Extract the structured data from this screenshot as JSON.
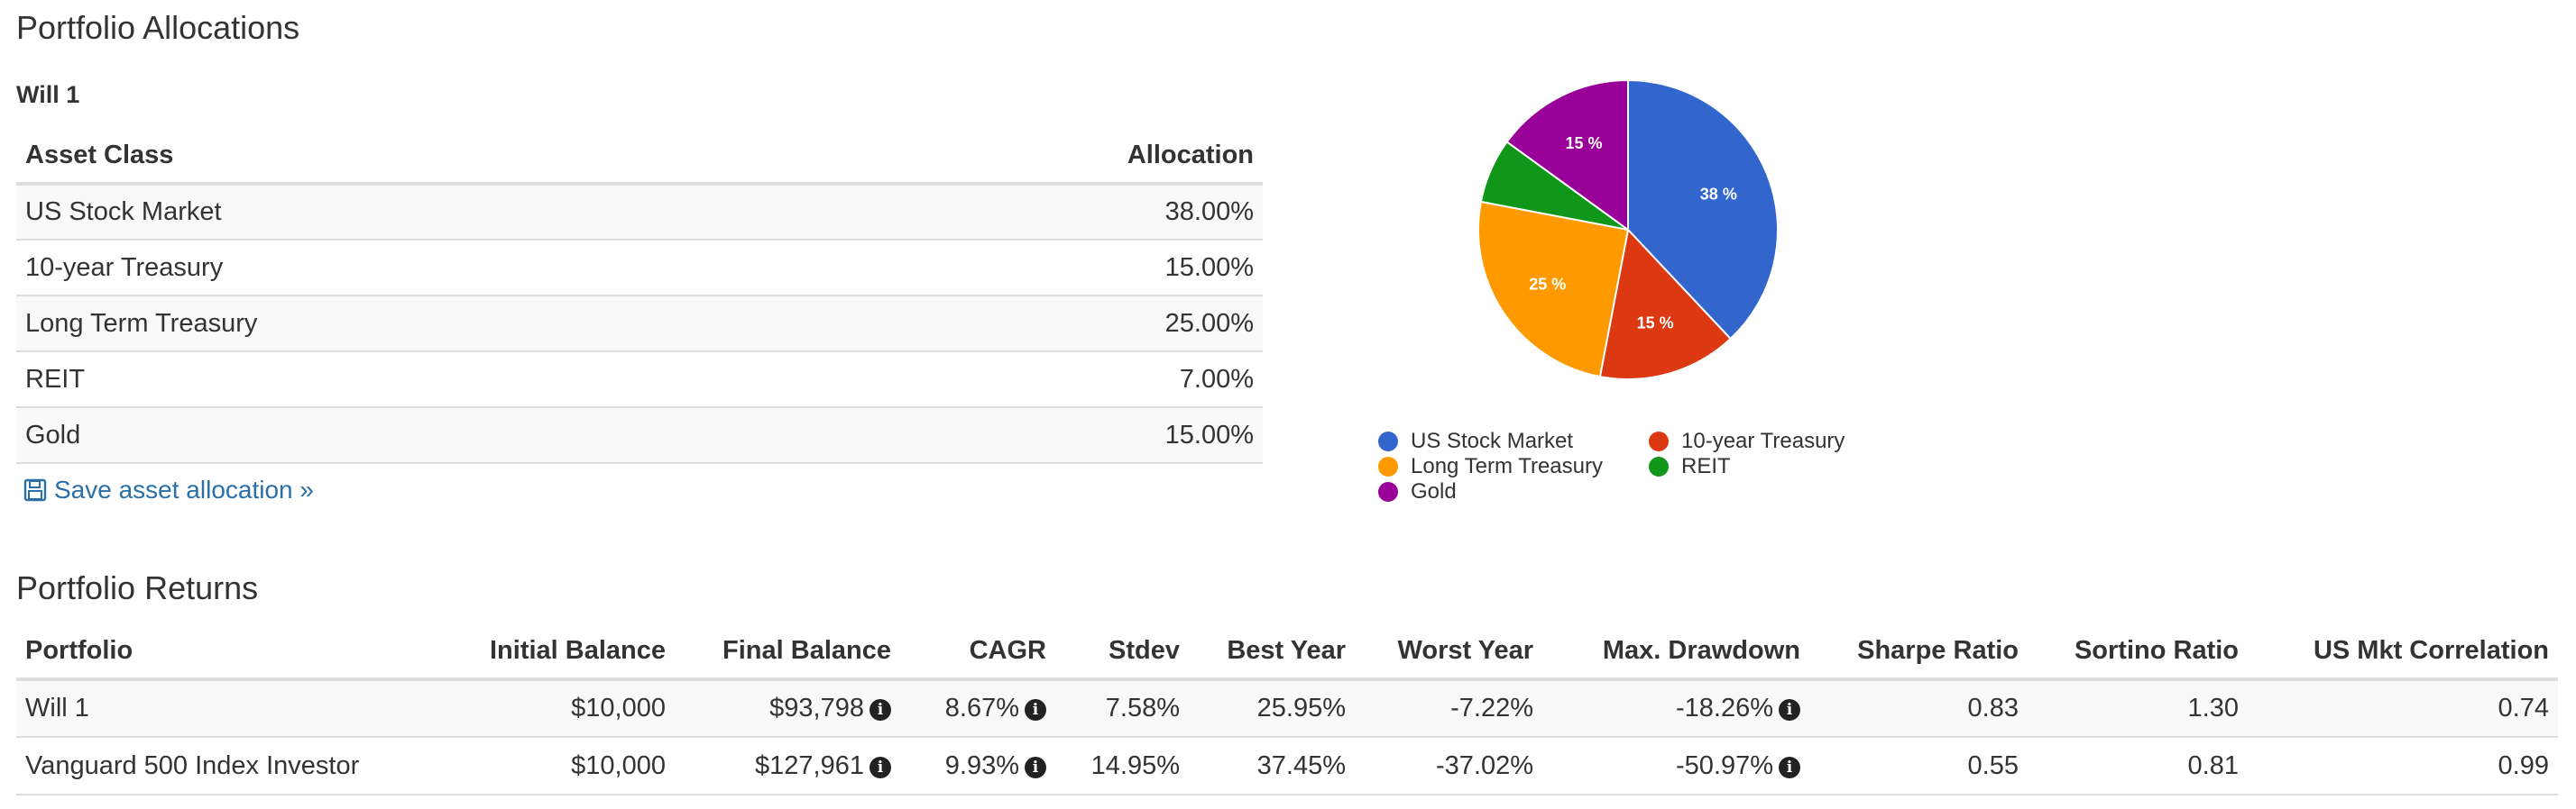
{
  "allocations": {
    "title": "Portfolio Allocations",
    "portfolio_name": "Will 1",
    "columns": [
      "Asset Class",
      "Allocation"
    ],
    "rows": [
      {
        "asset": "US Stock Market",
        "allocation": "38.00%"
      },
      {
        "asset": "10-year Treasury",
        "allocation": "15.00%"
      },
      {
        "asset": "Long Term Treasury",
        "allocation": "25.00%"
      },
      {
        "asset": "REIT",
        "allocation": "7.00%"
      },
      {
        "asset": "Gold",
        "allocation": "15.00%"
      }
    ],
    "save_link": "Save asset allocation »",
    "save_icon": "floppy-disk-icon"
  },
  "chart_data": {
    "type": "pie",
    "slices": [
      {
        "label": "US Stock Market",
        "value": 38,
        "color": "#3366cc",
        "data_label": "38 %"
      },
      {
        "label": "10-year Treasury",
        "value": 15,
        "color": "#dc3912",
        "data_label": "15 %"
      },
      {
        "label": "Long Term Treasury",
        "value": 25,
        "color": "#ff9900",
        "data_label": "25 %"
      },
      {
        "label": "REIT",
        "value": 7,
        "color": "#109618",
        "data_label": ""
      },
      {
        "label": "Gold",
        "value": 15,
        "color": "#990099",
        "data_label": "15 %"
      }
    ],
    "legend_placement": "bottom",
    "legend": [
      {
        "label": "US Stock Market",
        "color": "#3366cc"
      },
      {
        "label": "10-year Treasury",
        "color": "#dc3912"
      },
      {
        "label": "Long Term Treasury",
        "color": "#ff9900"
      },
      {
        "label": "REIT",
        "color": "#109618"
      },
      {
        "label": "Gold",
        "color": "#990099"
      }
    ]
  },
  "returns": {
    "title": "Portfolio Returns",
    "columns": [
      "Portfolio",
      "Initial Balance",
      "Final Balance",
      "CAGR",
      "Stdev",
      "Best Year",
      "Worst Year",
      "Max. Drawdown",
      "Sharpe Ratio",
      "Sortino Ratio",
      "US Mkt Correlation"
    ],
    "rows": [
      {
        "portfolio": "Will 1",
        "initial": "$10,000",
        "final": "$93,798",
        "cagr": "8.67%",
        "stdev": "7.58%",
        "best": "25.95%",
        "worst": "-7.22%",
        "drawdown": "-18.26%",
        "sharpe": "0.83",
        "sortino": "1.30",
        "corr": "0.74"
      },
      {
        "portfolio": "Vanguard 500 Index Investor",
        "initial": "$10,000",
        "final": "$127,961",
        "cagr": "9.93%",
        "stdev": "14.95%",
        "best": "37.45%",
        "worst": "-37.02%",
        "drawdown": "-50.97%",
        "sharpe": "0.55",
        "sortino": "0.81",
        "corr": "0.99"
      }
    ],
    "info_icon": "info-icon",
    "info_glyph": "i"
  }
}
